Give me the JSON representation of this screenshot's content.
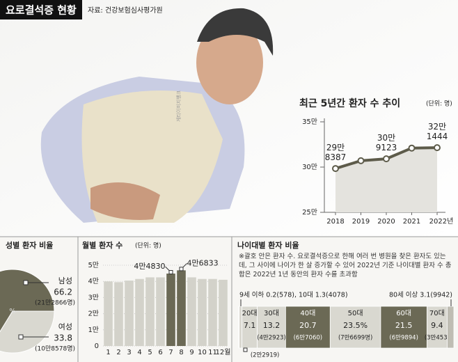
{
  "header": {
    "title": "요로결석증 현황",
    "source": "자료: 건강보험심사평가원"
  },
  "image": {
    "credit": "게티이미지뱅크"
  },
  "chart_data": [
    {
      "type": "line",
      "title": "최근 5년간 환자 수 추이",
      "unit": "(단위: 명)",
      "categories": [
        "2018",
        "2019",
        "2020",
        "2021",
        "2022년"
      ],
      "values": [
        298387,
        307000,
        309123,
        321000,
        321444
      ],
      "value_labels": [
        "29만 8387",
        null,
        "30만 9123",
        null,
        "32만 1444"
      ],
      "color": "#5d5b4a",
      "area_color": "#e4e3de",
      "ylim": [
        250000,
        350000
      ],
      "yticks": [
        {
          "value": 250000,
          "label": "25만"
        },
        {
          "value": 300000,
          "label": "30만"
        },
        {
          "value": 350000,
          "label": "35만"
        }
      ]
    },
    {
      "type": "pie",
      "title": "성별 환자 비율",
      "center_label": "%",
      "categories": [
        "남성",
        "여성"
      ],
      "values": [
        66.2,
        33.8
      ],
      "count_labels": [
        "(21만2866명)",
        "(10만8578명)"
      ],
      "colors": [
        "#6b6955",
        "#d9d8d0"
      ]
    },
    {
      "type": "bar",
      "title": "월별 환자 수",
      "unit": "(단위: 명)",
      "categories": [
        "1",
        "2",
        "3",
        "4",
        "5",
        "6",
        "7",
        "8",
        "9",
        "10",
        "11",
        "12월"
      ],
      "values": [
        40000,
        39500,
        40500,
        41500,
        42500,
        42500,
        44830,
        46833,
        42500,
        41500,
        41500,
        41000
      ],
      "value_labels": [
        null,
        null,
        null,
        null,
        null,
        null,
        "4만4830",
        "4만6833",
        null,
        null,
        null,
        null
      ],
      "colors": [
        "#d3d2ca",
        "#d3d2ca",
        "#d3d2ca",
        "#d3d2ca",
        "#d3d2ca",
        "#d3d2ca",
        "#6b6955",
        "#6b6955",
        "#d3d2ca",
        "#d3d2ca",
        "#d3d2ca",
        "#d3d2ca"
      ],
      "ylim": [
        0,
        50000
      ],
      "yticks": [
        0,
        {
          "value": 10000,
          "label": "1만"
        },
        {
          "value": 20000,
          "label": "2만"
        },
        {
          "value": 30000,
          "label": "3만"
        },
        {
          "value": 40000,
          "label": "4만"
        },
        {
          "value": 50000,
          "label": "5만"
        }
      ],
      "grid": true
    },
    {
      "type": "stacked_bar",
      "title": "나이대별 환자 비율",
      "note": "※괄호 안은 환자 수. 요로결석증으로 한해 여러 번 병원을 찾은 환자도 있는데, 그 사이에 나이가 한 살 증가할 수 있어 2022년 기준 나이대별 환자 수 총합은 2022년 1년 동안의 환자 수를 초과함",
      "categories": [
        null,
        null,
        "20대",
        "30대",
        "40대",
        "50대",
        "60대",
        "70대",
        null
      ],
      "values": [
        0.2,
        1.3,
        7.1,
        13.2,
        20.7,
        23.5,
        21.5,
        9.4,
        3.1
      ],
      "value_labels": [
        null,
        null,
        "7.1",
        "13.2",
        "20.7",
        "23.5%",
        "21.5",
        "9.4",
        null
      ],
      "count_labels": [
        null,
        null,
        "(2만2919)",
        "(4만2923)",
        "(6만7060)",
        "(7만6699명)",
        "(6만9894)",
        "(3만453)",
        null
      ],
      "colors": [
        "#6b6955",
        "#d9d8d0",
        "#d9d8d0",
        "#d9d8d0",
        "#6b6955",
        "#d9d8d0",
        "#6b6955",
        "#d9d8d0",
        "#bfbdb3"
      ],
      "annotations": [
        "9세 이하 0.2(578), 10대 1.3(4078)",
        "80세 이상 3.1(9942)"
      ]
    }
  ]
}
